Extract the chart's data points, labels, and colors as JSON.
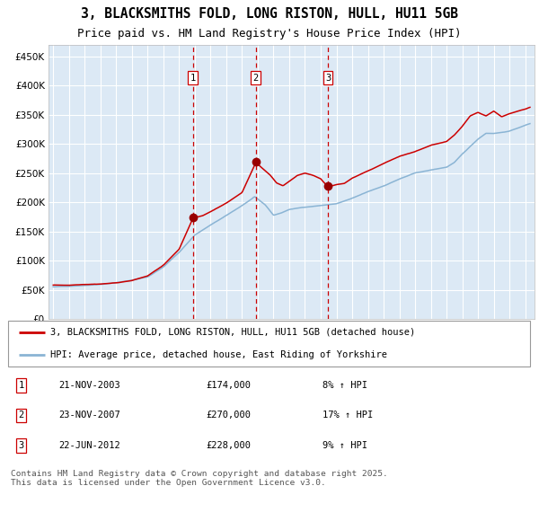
{
  "title": "3, BLACKSMITHS FOLD, LONG RISTON, HULL, HU11 5GB",
  "subtitle": "Price paid vs. HM Land Registry's House Price Index (HPI)",
  "legend_line1": "3, BLACKSMITHS FOLD, LONG RISTON, HULL, HU11 5GB (detached house)",
  "legend_line2": "HPI: Average price, detached house, East Riding of Yorkshire",
  "footer": "Contains HM Land Registry data © Crown copyright and database right 2025.\nThis data is licensed under the Open Government Licence v3.0.",
  "sale_markers": [
    {
      "label": "1",
      "date": "21-NOV-2003",
      "price": "£174,000",
      "hpi_change": "8% ↑ HPI"
    },
    {
      "label": "2",
      "date": "23-NOV-2007",
      "price": "£270,000",
      "hpi_change": "17% ↑ HPI"
    },
    {
      "label": "3",
      "date": "22-JUN-2012",
      "price": "£228,000",
      "hpi_change": "9% ↑ HPI"
    }
  ],
  "sale_years": [
    2003.88,
    2007.88,
    2012.46
  ],
  "sale_prices": [
    174000,
    270000,
    228000
  ],
  "background_color": "#dce9f5",
  "hpi_line_color": "#8ab4d4",
  "price_line_color": "#cc0000",
  "marker_color": "#990000",
  "vline_color": "#cc0000",
  "grid_color": "#ffffff",
  "ylim": [
    0,
    470000
  ],
  "yticks": [
    0,
    50000,
    100000,
    150000,
    200000,
    250000,
    300000,
    350000,
    400000,
    450000
  ],
  "xmin": 1994.7,
  "xmax": 2025.6,
  "hpi_anchors_x": [
    1995.0,
    1996.0,
    1997.0,
    1998.0,
    1999.0,
    2000.0,
    2001.0,
    2002.0,
    2003.0,
    2004.0,
    2005.0,
    2006.0,
    2007.0,
    2007.8,
    2008.5,
    2009.0,
    2009.5,
    2010.0,
    2011.0,
    2012.0,
    2013.0,
    2014.0,
    2015.0,
    2016.0,
    2017.0,
    2018.0,
    2019.0,
    2020.0,
    2020.5,
    2021.0,
    2022.0,
    2022.5,
    2023.0,
    2024.0,
    2025.0,
    2025.3
  ],
  "hpi_anchors_y": [
    55000,
    56000,
    58000,
    60000,
    63000,
    67000,
    73000,
    90000,
    115000,
    145000,
    162000,
    178000,
    195000,
    210000,
    195000,
    178000,
    182000,
    188000,
    192000,
    195000,
    198000,
    207000,
    218000,
    228000,
    240000,
    250000,
    255000,
    260000,
    268000,
    282000,
    308000,
    318000,
    318000,
    322000,
    332000,
    335000
  ],
  "price_anchors_x": [
    1995.0,
    1996.0,
    1997.0,
    1998.0,
    1999.0,
    2000.0,
    2001.0,
    2002.0,
    2003.0,
    2003.88,
    2004.5,
    2005.0,
    2006.0,
    2007.0,
    2007.88,
    2008.2,
    2008.8,
    2009.2,
    2009.6,
    2010.0,
    2010.5,
    2011.0,
    2011.5,
    2012.0,
    2012.46,
    2013.0,
    2013.5,
    2014.0,
    2015.0,
    2016.0,
    2017.0,
    2018.0,
    2019.0,
    2020.0,
    2020.5,
    2021.0,
    2021.5,
    2022.0,
    2022.5,
    2023.0,
    2023.5,
    2024.0,
    2024.5,
    2025.0,
    2025.3
  ],
  "price_anchors_y": [
    58000,
    58000,
    60000,
    61000,
    63000,
    67000,
    75000,
    93000,
    120000,
    174000,
    178000,
    185000,
    200000,
    218000,
    270000,
    262000,
    248000,
    235000,
    230000,
    238000,
    248000,
    252000,
    248000,
    242000,
    228000,
    232000,
    234000,
    243000,
    255000,
    268000,
    280000,
    288000,
    298000,
    304000,
    315000,
    330000,
    348000,
    354000,
    348000,
    356000,
    346000,
    352000,
    356000,
    360000,
    363000
  ]
}
